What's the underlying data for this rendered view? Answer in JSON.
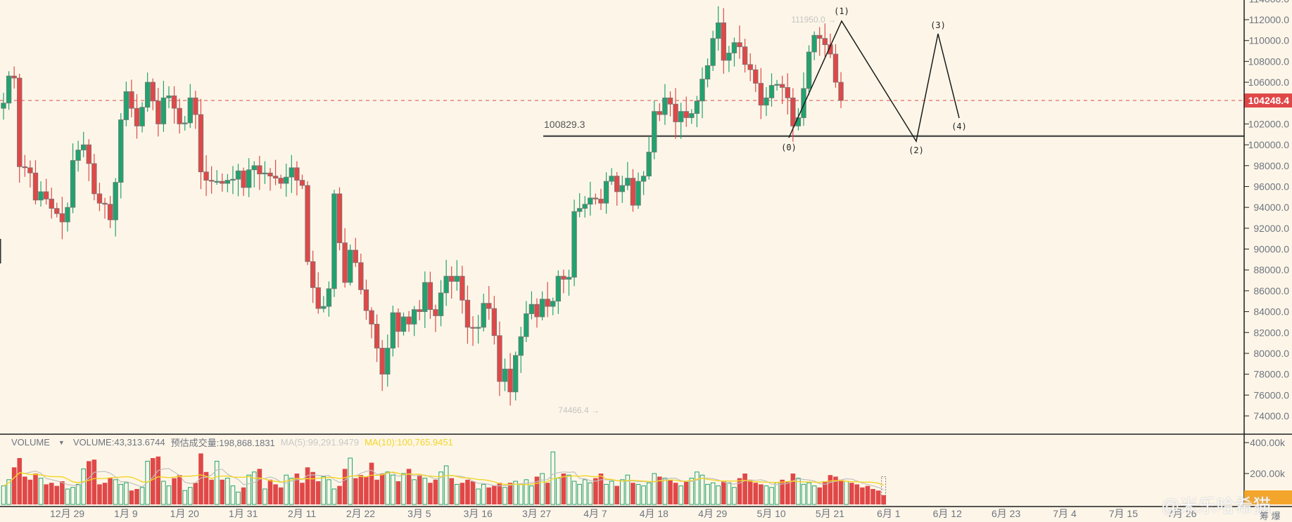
{
  "chart_data": {
    "type": "candlestick",
    "title": "",
    "price_axis": {
      "ticks": [
        "114000.0",
        "112000.0",
        "110000.0",
        "108000.0",
        "106000.0",
        "104000.0",
        "102000.0",
        "100000.0",
        "98000.0",
        "96000.0",
        "94000.0",
        "92000.0",
        "90000.0",
        "88000.0",
        "86000.0",
        "84000.0",
        "82000.0",
        "80000.0",
        "78000.0",
        "76000.0",
        "74000.0"
      ],
      "tick_values": [
        114000,
        112000,
        110000,
        108000,
        106000,
        104000,
        102000,
        100000,
        98000,
        96000,
        94000,
        92000,
        90000,
        88000,
        86000,
        84000,
        82000,
        80000,
        78000,
        76000,
        74000
      ],
      "range": [
        72800,
        113900
      ]
    },
    "current_price": {
      "value": 104248.4,
      "label": "104248.4",
      "color": "#e04848"
    },
    "support_line": {
      "value": 100829.3,
      "label": "100829.3"
    },
    "high_marker": {
      "value": 111950.0,
      "label": "111950.0 →"
    },
    "low_marker": {
      "value": 74466.4,
      "label": "74466.4 →"
    },
    "wave_labels": [
      {
        "label": "(0)",
        "price": 100829.3,
        "index": 126
      },
      {
        "label": "(1)",
        "price": 111950.0,
        "index": 134
      },
      {
        "label": "(2)",
        "price": 100400,
        "index": 146
      },
      {
        "label": "(3)",
        "price": 110600,
        "index": 150
      },
      {
        "label": "(4)",
        "price": 102800,
        "index": 153
      }
    ],
    "x_axis": {
      "labels": [
        "12月 29",
        "1月 9",
        "1月 20",
        "1月 31",
        "2月 11",
        "2月 22",
        "3月 5",
        "3月 16",
        "3月 27",
        "4月 7",
        "4月 18",
        "4月 29",
        "5月 10",
        "5月 21",
        "6月 1",
        "6月 12",
        "6月 23",
        "7月 4",
        "7月 15",
        "7月 26"
      ],
      "label_indices": [
        13,
        24,
        35,
        46,
        57,
        68,
        79,
        90,
        101,
        112,
        123,
        134,
        145,
        156,
        167,
        178,
        189,
        200,
        211,
        222
      ]
    },
    "volume_axis": {
      "ticks": [
        "400.00k",
        "200.00k"
      ],
      "tick_values": [
        400000,
        200000
      ]
    },
    "colors": {
      "up": "#20a36e",
      "down": "#e04848",
      "ma5": "#c0c0c0",
      "ma10": "#f3d526",
      "background": "#fdf6e8"
    },
    "closes": [
      104000,
      106600,
      106400,
      97900,
      97800,
      97300,
      94700,
      95500,
      94800,
      93900,
      93400,
      92600,
      94000,
      98500,
      99500,
      100000,
      98200,
      95300,
      94400,
      94300,
      92800,
      96400,
      102400,
      105100,
      103500,
      101800,
      103600,
      106000,
      104200,
      102000,
      104500,
      104700,
      103500,
      102000,
      102100,
      104500,
      102900,
      97400,
      96600,
      96500,
      96500,
      96300,
      96600,
      96700,
      97500,
      95900,
      97600,
      98000,
      97200,
      97300,
      97000,
      96800,
      96300,
      96900,
      97800,
      96600,
      96100,
      88800,
      86300,
      84300,
      84500,
      86200,
      95300,
      90600,
      86800,
      89900,
      88700,
      86100,
      84100,
      82800,
      80500,
      78000,
      80500,
      83900,
      82100,
      83500,
      82800,
      84200,
      84000,
      86800,
      84200,
      83600,
      85800,
      87400,
      86900,
      87400,
      85100,
      82500,
      82400,
      82500,
      84800,
      84300,
      81700,
      77300,
      78500,
      76300,
      79800,
      81600,
      83800,
      84700,
      83500,
      85200,
      84500,
      85000,
      87400,
      87100,
      87300,
      93600,
      93900,
      94300,
      94900,
      94800,
      94400,
      96500,
      97000,
      95500,
      96100,
      96800,
      94200,
      96500,
      97000,
      99300,
      103200,
      102900,
      104500,
      103900,
      102200,
      103200,
      102600,
      103000,
      104200,
      106300,
      107600,
      110200,
      111700,
      108100,
      108800,
      109800,
      109400,
      107700,
      107200,
      105900,
      103800,
      104500,
      105700,
      105800,
      105500,
      104500,
      101800,
      102600,
      105400,
      108900,
      110500,
      110200,
      109600,
      108700,
      106000,
      104248
    ],
    "volumes": [
      120,
      160,
      240,
      300,
      180,
      160,
      200,
      170,
      130,
      140,
      120,
      150,
      100,
      110,
      130,
      230,
      280,
      290,
      130,
      140,
      170,
      160,
      130,
      140,
      90,
      100,
      110,
      280,
      300,
      310,
      150,
      120,
      170,
      190,
      90,
      110,
      140,
      330,
      210,
      160,
      280,
      160,
      170,
      120,
      80,
      110,
      190,
      210,
      230,
      100,
      160,
      130,
      110,
      190,
      170,
      200,
      140,
      240,
      210,
      150,
      180,
      160,
      100,
      120,
      230,
      300,
      170,
      190,
      180,
      270,
      160,
      200,
      210,
      190,
      150,
      200,
      230,
      160,
      190,
      170,
      140,
      160,
      210,
      250,
      170,
      130,
      140,
      160,
      150,
      100,
      130,
      110,
      120,
      140,
      110,
      140,
      150,
      130,
      160,
      120,
      180,
      200,
      140,
      340,
      170,
      200,
      190,
      150,
      130,
      160,
      140,
      170,
      200,
      130,
      150,
      120,
      160,
      190,
      140,
      130,
      120,
      140,
      200,
      180,
      170,
      160,
      140,
      120,
      150,
      170,
      210,
      190,
      130,
      140,
      120,
      150,
      140,
      110,
      170,
      200,
      160,
      140,
      130,
      120,
      110,
      140,
      160,
      150,
      200,
      170,
      130,
      140,
      120,
      110,
      150,
      190,
      180,
      160,
      150,
      140,
      130,
      110,
      120,
      100,
      90,
      60
    ]
  },
  "legend": {
    "name": "VOLUME",
    "caret": "▼",
    "volume": "VOLUME:43,313.6744",
    "estimate": "预估成交量:198,868.1831",
    "ma5": "MA(5):99,291.9479",
    "ma10": "MA(10):100,765.9451"
  },
  "watermark": {
    "text": "@米乐哈希猫"
  },
  "bottom_right_text": "筹 爆"
}
